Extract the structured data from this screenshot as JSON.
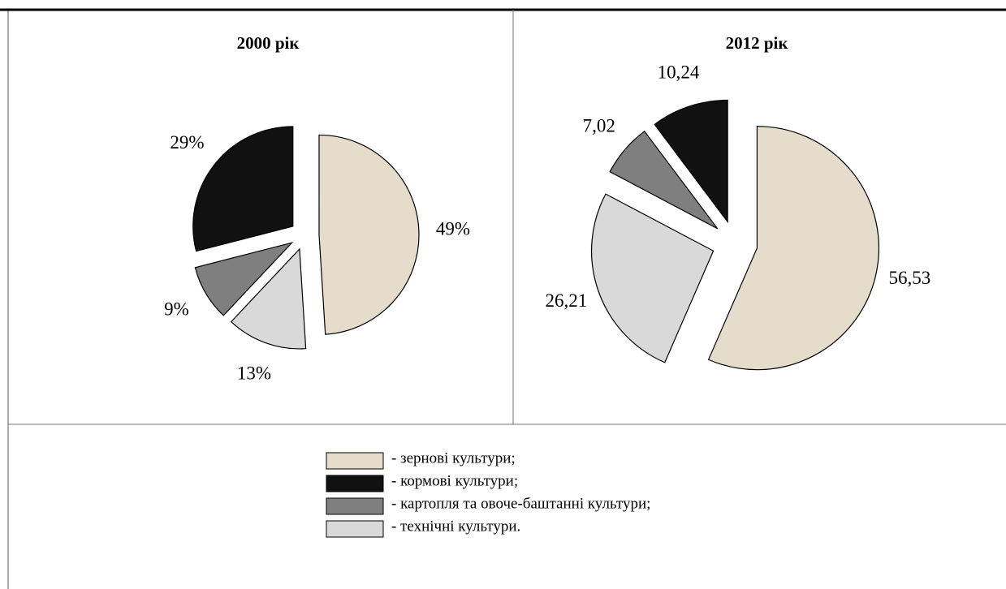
{
  "chart_data": [
    {
      "type": "pie",
      "title": "2000 рік",
      "values": [
        49,
        29,
        9,
        13
      ],
      "value_labels": [
        "49%",
        "29%",
        "9%",
        "13%"
      ]
    },
    {
      "type": "pie",
      "title": "2012 рік",
      "values": [
        56.53,
        10.24,
        7.02,
        26.21
      ],
      "value_labels": [
        "56,53",
        "10,24",
        "7,02",
        "26,21"
      ]
    }
  ],
  "legend": {
    "labels": [
      "- зернові культури;",
      "- кормові культури;",
      "- картопля та овоче-баштанні культури;",
      "- технічні культури."
    ],
    "colors": [
      "#e6dccb",
      "#111111",
      "#7f7f7f",
      "#d9d9d9"
    ]
  }
}
